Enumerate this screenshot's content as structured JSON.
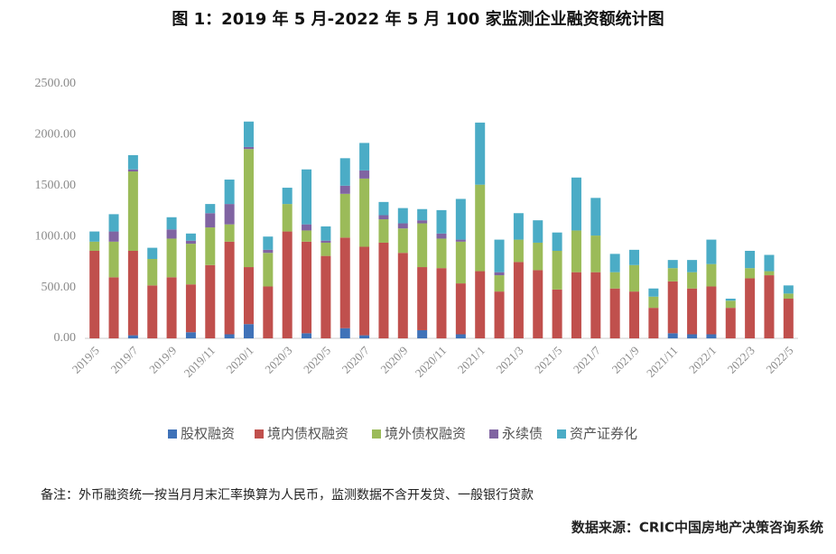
{
  "chart_data": {
    "type": "bar",
    "stacked": true,
    "title": "图 1：2019 年 5 月-2022 年 5 月 100 家监测企业融资额统计图",
    "note": "备注：外币融资统一按当月月末汇率换算为人民币，监测数据不含开发贷、一般银行贷款",
    "source": "数据来源：CRIC中国房地产决策咨询系统",
    "categories": [
      "2019/5",
      null,
      "2019/7",
      null,
      "2019/9",
      null,
      "2019/11",
      null,
      "2020/1",
      null,
      "2020/3",
      null,
      "2020/5",
      null,
      "2020/7",
      null,
      "2020/9",
      null,
      "2020/11",
      null,
      "2021/1",
      null,
      "2021/3",
      null,
      "2021/5",
      null,
      "2021/7",
      null,
      "2021/9",
      null,
      "2021/11",
      null,
      "2022/1",
      null,
      "2022/3",
      null,
      "2022/5"
    ],
    "series": [
      {
        "name": "股权融资",
        "color": "#3f72b8",
        "values": [
          0,
          0,
          30,
          0,
          0,
          60,
          0,
          40,
          140,
          0,
          0,
          50,
          0,
          100,
          30,
          0,
          0,
          80,
          0,
          40,
          0,
          0,
          0,
          0,
          0,
          0,
          0,
          0,
          0,
          0,
          50,
          40,
          40,
          0,
          0,
          0,
          0
        ]
      },
      {
        "name": "境内债权融资",
        "color": "#c0504d",
        "values": [
          860,
          600,
          830,
          520,
          600,
          470,
          720,
          910,
          560,
          510,
          1050,
          900,
          810,
          890,
          870,
          940,
          840,
          620,
          690,
          500,
          660,
          460,
          750,
          670,
          480,
          650,
          650,
          490,
          460,
          300,
          510,
          450,
          470,
          300,
          590,
          620,
          390
        ]
      },
      {
        "name": "境外债权融资",
        "color": "#9bbb59",
        "values": [
          90,
          350,
          780,
          260,
          380,
          400,
          370,
          170,
          1160,
          330,
          270,
          110,
          130,
          430,
          670,
          230,
          240,
          430,
          290,
          410,
          850,
          160,
          220,
          270,
          380,
          410,
          360,
          160,
          260,
          110,
          130,
          160,
          220,
          70,
          100,
          40,
          50
        ]
      },
      {
        "name": "永续债",
        "color": "#8064a2",
        "values": [
          0,
          100,
          20,
          0,
          90,
          30,
          140,
          200,
          20,
          30,
          0,
          60,
          20,
          80,
          80,
          40,
          50,
          30,
          50,
          20,
          0,
          30,
          0,
          0,
          0,
          0,
          0,
          0,
          0,
          0,
          0,
          0,
          0,
          0,
          0,
          0,
          0
        ]
      },
      {
        "name": "资产证券化",
        "color": "#4bacc6",
        "values": [
          100,
          170,
          140,
          110,
          120,
          70,
          90,
          240,
          250,
          130,
          160,
          540,
          140,
          270,
          270,
          130,
          150,
          110,
          230,
          400,
          610,
          320,
          260,
          220,
          180,
          520,
          370,
          180,
          150,
          80,
          80,
          120,
          240,
          20,
          170,
          160,
          80
        ]
      }
    ],
    "ylim": [
      0,
      2500
    ],
    "yticks": [
      {
        "value": 0,
        "label": "0.00"
      },
      {
        "value": 500,
        "label": "500.00"
      },
      {
        "value": 1000,
        "label": "1000.00"
      },
      {
        "value": 1500,
        "label": "1500.00"
      },
      {
        "value": 2000,
        "label": "2000.00"
      },
      {
        "value": 2500,
        "label": "2500.00"
      }
    ],
    "grid": false,
    "legend": "bottom"
  }
}
